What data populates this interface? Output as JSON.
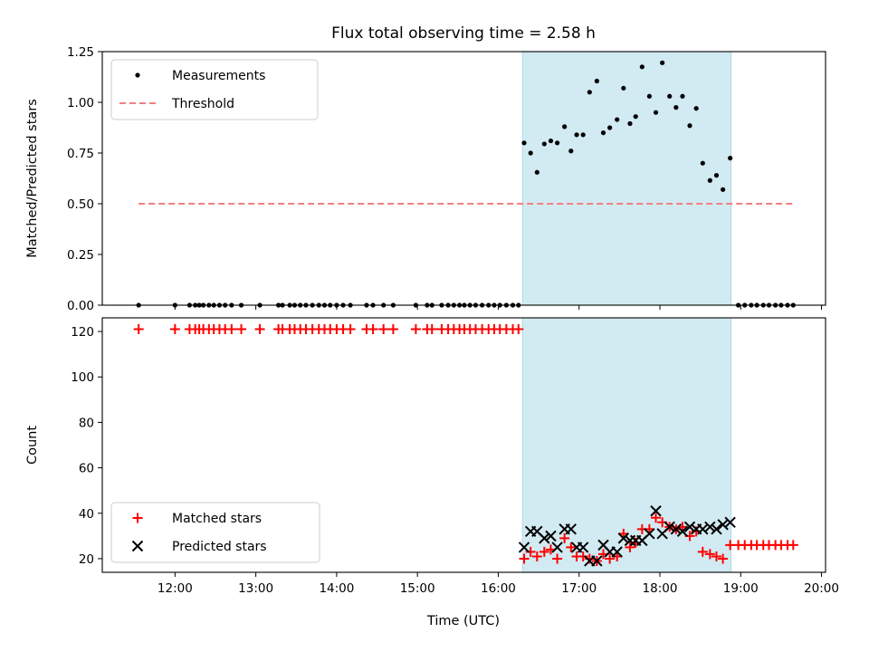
{
  "chart_data": {
    "title": "Flux total observing time = 2.58 h",
    "xlabel": "Time (UTC)",
    "x_unit": "hours UTC",
    "xlim": [
      11.1,
      20.05
    ],
    "x_ticks": [
      12,
      13,
      14,
      15,
      16,
      17,
      18,
      19,
      20
    ],
    "x_tick_labels": [
      "12:00",
      "13:00",
      "14:00",
      "15:00",
      "16:00",
      "17:00",
      "18:00",
      "19:00",
      "20:00"
    ],
    "observing_window": {
      "start": 16.3,
      "end": 18.88,
      "color": "#add8e6"
    },
    "panels": [
      {
        "type": "scatter",
        "ylabel": "Matched/Predicted stars",
        "ylim": [
          0,
          1.25
        ],
        "y_ticks": [
          0.0,
          0.25,
          0.5,
          0.75,
          1.0,
          1.25
        ],
        "y_tick_labels": [
          "0.00",
          "0.25",
          "0.50",
          "0.75",
          "1.00",
          "1.25"
        ],
        "legend": [
          "Measurements",
          "Threshold"
        ],
        "series": [
          {
            "name": "Measurements",
            "marker": "dot",
            "color": "#000000",
            "points": [
              [
                11.55,
                0
              ],
              [
                12.0,
                0
              ],
              [
                12.18,
                0
              ],
              [
                12.25,
                0
              ],
              [
                12.3,
                0
              ],
              [
                12.35,
                0
              ],
              [
                12.42,
                0
              ],
              [
                12.48,
                0
              ],
              [
                12.55,
                0
              ],
              [
                12.62,
                0
              ],
              [
                12.7,
                0
              ],
              [
                12.82,
                0
              ],
              [
                13.05,
                0
              ],
              [
                13.28,
                0
              ],
              [
                13.33,
                0
              ],
              [
                13.42,
                0
              ],
              [
                13.48,
                0
              ],
              [
                13.55,
                0
              ],
              [
                13.62,
                0
              ],
              [
                13.7,
                0
              ],
              [
                13.78,
                0
              ],
              [
                13.85,
                0
              ],
              [
                13.92,
                0
              ],
              [
                14.0,
                0
              ],
              [
                14.08,
                0
              ],
              [
                14.17,
                0
              ],
              [
                14.37,
                0
              ],
              [
                14.45,
                0
              ],
              [
                14.58,
                0
              ],
              [
                14.7,
                0
              ],
              [
                14.98,
                0
              ],
              [
                15.12,
                0
              ],
              [
                15.18,
                0
              ],
              [
                15.3,
                0
              ],
              [
                15.38,
                0
              ],
              [
                15.45,
                0
              ],
              [
                15.52,
                0
              ],
              [
                15.58,
                0
              ],
              [
                15.65,
                0
              ],
              [
                15.72,
                0
              ],
              [
                15.8,
                0
              ],
              [
                15.88,
                0
              ],
              [
                15.95,
                0
              ],
              [
                16.02,
                0
              ],
              [
                16.1,
                0
              ],
              [
                16.18,
                0
              ],
              [
                16.25,
                0
              ],
              [
                16.32,
                0.8
              ],
              [
                16.4,
                0.75
              ],
              [
                16.48,
                0.655
              ],
              [
                16.57,
                0.795
              ],
              [
                16.65,
                0.81
              ],
              [
                16.73,
                0.8
              ],
              [
                16.82,
                0.88
              ],
              [
                16.9,
                0.76
              ],
              [
                16.97,
                0.84
              ],
              [
                17.05,
                0.84
              ],
              [
                17.13,
                1.05
              ],
              [
                17.22,
                1.105
              ],
              [
                17.3,
                0.85
              ],
              [
                17.38,
                0.875
              ],
              [
                17.47,
                0.915
              ],
              [
                17.55,
                1.07
              ],
              [
                17.63,
                0.895
              ],
              [
                17.7,
                0.93
              ],
              [
                17.78,
                1.175
              ],
              [
                17.87,
                1.03
              ],
              [
                17.95,
                0.95
              ],
              [
                18.03,
                1.195
              ],
              [
                18.12,
                1.03
              ],
              [
                18.2,
                0.975
              ],
              [
                18.28,
                1.03
              ],
              [
                18.37,
                0.885
              ],
              [
                18.45,
                0.97
              ],
              [
                18.53,
                0.7
              ],
              [
                18.62,
                0.615
              ],
              [
                18.7,
                0.64
              ],
              [
                18.78,
                0.57
              ],
              [
                18.87,
                0.725
              ],
              [
                18.97,
                0
              ],
              [
                19.05,
                0
              ],
              [
                19.13,
                0
              ],
              [
                19.2,
                0
              ],
              [
                19.28,
                0
              ],
              [
                19.35,
                0
              ],
              [
                19.43,
                0
              ],
              [
                19.5,
                0
              ],
              [
                19.58,
                0
              ],
              [
                19.65,
                0
              ]
            ]
          },
          {
            "name": "Threshold",
            "marker": "dashed-line",
            "color": "#f08080",
            "points": [
              [
                11.55,
                0.5
              ],
              [
                19.65,
                0.5
              ]
            ]
          }
        ]
      },
      {
        "type": "scatter",
        "ylabel": "Count",
        "ylim": [
          14,
          126
        ],
        "y_ticks": [
          20,
          40,
          60,
          80,
          100,
          120
        ],
        "y_tick_labels": [
          "20",
          "40",
          "60",
          "80",
          "100",
          "120"
        ],
        "legend": [
          "Matched stars",
          "Predicted stars"
        ],
        "series": [
          {
            "name": "Matched stars",
            "marker": "plus",
            "color": "#ff0000",
            "points": [
              [
                11.55,
                121
              ],
              [
                12.0,
                121
              ],
              [
                12.18,
                121
              ],
              [
                12.25,
                121
              ],
              [
                12.3,
                121
              ],
              [
                12.35,
                121
              ],
              [
                12.42,
                121
              ],
              [
                12.48,
                121
              ],
              [
                12.55,
                121
              ],
              [
                12.62,
                121
              ],
              [
                12.7,
                121
              ],
              [
                12.82,
                121
              ],
              [
                13.05,
                121
              ],
              [
                13.28,
                121
              ],
              [
                13.33,
                121
              ],
              [
                13.42,
                121
              ],
              [
                13.48,
                121
              ],
              [
                13.55,
                121
              ],
              [
                13.62,
                121
              ],
              [
                13.7,
                121
              ],
              [
                13.78,
                121
              ],
              [
                13.85,
                121
              ],
              [
                13.92,
                121
              ],
              [
                14.0,
                121
              ],
              [
                14.08,
                121
              ],
              [
                14.17,
                121
              ],
              [
                14.37,
                121
              ],
              [
                14.45,
                121
              ],
              [
                14.58,
                121
              ],
              [
                14.7,
                121
              ],
              [
                14.98,
                121
              ],
              [
                15.12,
                121
              ],
              [
                15.18,
                121
              ],
              [
                15.3,
                121
              ],
              [
                15.38,
                121
              ],
              [
                15.45,
                121
              ],
              [
                15.52,
                121
              ],
              [
                15.58,
                121
              ],
              [
                15.65,
                121
              ],
              [
                15.72,
                121
              ],
              [
                15.8,
                121
              ],
              [
                15.88,
                121
              ],
              [
                15.95,
                121
              ],
              [
                16.02,
                121
              ],
              [
                16.1,
                121
              ],
              [
                16.18,
                121
              ],
              [
                16.25,
                121
              ],
              [
                16.32,
                20
              ],
              [
                16.4,
                23
              ],
              [
                16.48,
                21
              ],
              [
                16.57,
                23
              ],
              [
                16.65,
                24
              ],
              [
                16.73,
                20
              ],
              [
                16.82,
                29
              ],
              [
                16.9,
                25
              ],
              [
                16.97,
                21
              ],
              [
                17.05,
                21
              ],
              [
                17.13,
                20
              ],
              [
                17.22,
                19
              ],
              [
                17.3,
                22
              ],
              [
                17.38,
                20
              ],
              [
                17.47,
                21
              ],
              [
                17.55,
                31
              ],
              [
                17.63,
                25
              ],
              [
                17.7,
                27
              ],
              [
                17.78,
                33
              ],
              [
                17.87,
                33
              ],
              [
                17.95,
                38
              ],
              [
                18.03,
                36
              ],
              [
                18.12,
                34
              ],
              [
                18.2,
                33
              ],
              [
                18.28,
                34
              ],
              [
                18.37,
                30
              ],
              [
                18.45,
                32
              ],
              [
                18.53,
                23
              ],
              [
                18.62,
                22
              ],
              [
                18.7,
                21
              ],
              [
                18.78,
                20
              ],
              [
                18.87,
                26
              ],
              [
                18.97,
                26
              ],
              [
                19.05,
                26
              ],
              [
                19.13,
                26
              ],
              [
                19.2,
                26
              ],
              [
                19.28,
                26
              ],
              [
                19.35,
                26
              ],
              [
                19.43,
                26
              ],
              [
                19.5,
                26
              ],
              [
                19.58,
                26
              ],
              [
                19.65,
                26
              ]
            ]
          },
          {
            "name": "Predicted stars",
            "marker": "cross",
            "color": "#000000",
            "points": [
              [
                16.32,
                25
              ],
              [
                16.4,
                32
              ],
              [
                16.48,
                32
              ],
              [
                16.57,
                29
              ],
              [
                16.65,
                30
              ],
              [
                16.73,
                25
              ],
              [
                16.82,
                33
              ],
              [
                16.9,
                33
              ],
              [
                16.97,
                25
              ],
              [
                17.05,
                25
              ],
              [
                17.13,
                19
              ],
              [
                17.22,
                19
              ],
              [
                17.3,
                26
              ],
              [
                17.38,
                23
              ],
              [
                17.47,
                23
              ],
              [
                17.55,
                29
              ],
              [
                17.63,
                28
              ],
              [
                17.7,
                28
              ],
              [
                17.78,
                28
              ],
              [
                17.87,
                31
              ],
              [
                17.95,
                41
              ],
              [
                18.03,
                31
              ],
              [
                18.12,
                34
              ],
              [
                18.2,
                33
              ],
              [
                18.28,
                32
              ],
              [
                18.37,
                34
              ],
              [
                18.45,
                33
              ],
              [
                18.53,
                33
              ],
              [
                18.62,
                34
              ],
              [
                18.7,
                33
              ],
              [
                18.78,
                35
              ],
              [
                18.87,
                36
              ]
            ]
          }
        ]
      }
    ]
  }
}
